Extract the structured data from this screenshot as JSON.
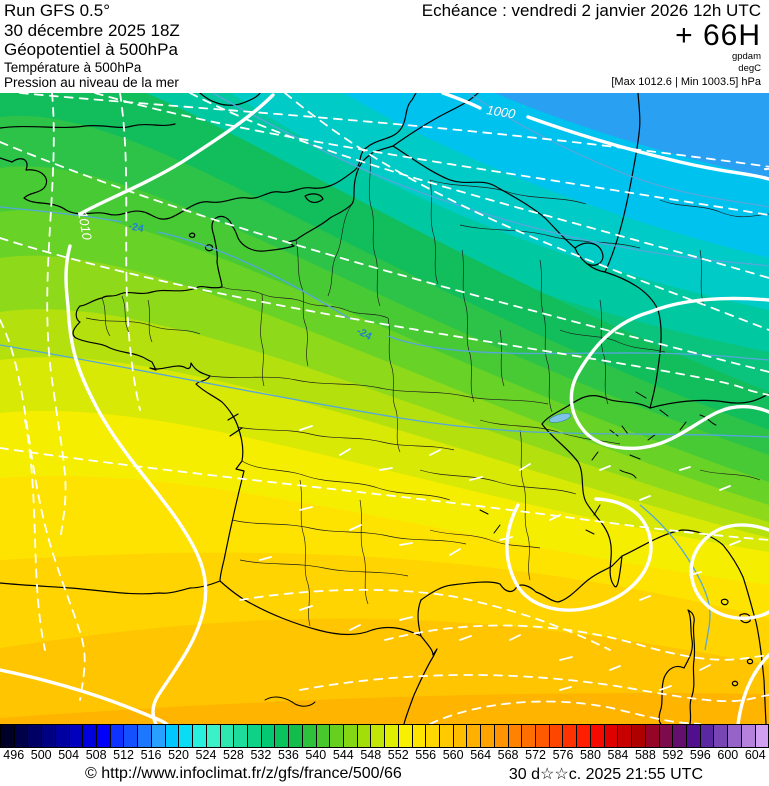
{
  "header": {
    "run": "Run GFS 0.5°",
    "run_date": "30 décembre 2025 18Z",
    "field1": "Géopotentiel à 500hPa",
    "field2": "Température à 500hPa",
    "field3": "Pression au niveau de la mer",
    "echeance": "Echéance : vendredi 2 janvier 2026 12h UTC",
    "step": "+ 66H",
    "unit_fill": "gpdam",
    "unit_temp": "degC",
    "maxmin": "[Max 1012.6 | Min 1003.5] hPa"
  },
  "map": {
    "labels": {
      "isobar_1000": "1000",
      "isobar_1010": "1010",
      "temp_minus24": "-24"
    },
    "band_colors": [
      "#2aa0f2",
      "#00c2ee",
      "#00cbc6",
      "#00c9a2",
      "#0ac47e",
      "#12bd5b",
      "#2cc348",
      "#48ca35",
      "#68d226",
      "#8ed91a",
      "#b4e10e",
      "#d8e905",
      "#f6ee00",
      "#ffe300",
      "#ffd400",
      "#ffc500",
      "#ffb400"
    ],
    "temp_line_color": "#55a7dc",
    "isobar_color": "#ffffff",
    "border_color": "#000000"
  },
  "colorbar": {
    "tick_labels": [
      "496",
      "500",
      "504",
      "508",
      "512",
      "516",
      "520",
      "524",
      "528",
      "532",
      "536",
      "540",
      "544",
      "548",
      "552",
      "556",
      "560",
      "564",
      "568",
      "572",
      "576",
      "580",
      "584",
      "588",
      "592",
      "596",
      "600",
      "604"
    ],
    "cell_colors": [
      "#000028",
      "#000046",
      "#000064",
      "#000082",
      "#0000a0",
      "#0000be",
      "#0000dc",
      "#0000fa",
      "#0f32ff",
      "#1450ff",
      "#1e78ff",
      "#28a0ff",
      "#00c8ff",
      "#0adcf5",
      "#28f0dc",
      "#3cf0c8",
      "#2ee6b0",
      "#1edc9b",
      "#0fd287",
      "#05c873",
      "#0ac35f",
      "#14bd4b",
      "#2ec23c",
      "#48c82d",
      "#66cf1f",
      "#85d714",
      "#a3de0a",
      "#c2e605",
      "#e0ee00",
      "#f8f000",
      "#ffe400",
      "#ffd700",
      "#ffca00",
      "#ffbd00",
      "#ffb000",
      "#ffa300",
      "#ff9300",
      "#ff8200",
      "#ff6e00",
      "#ff5a00",
      "#ff4600",
      "#ff3200",
      "#ff1e00",
      "#f50a00",
      "#e10000",
      "#c80000",
      "#af0000",
      "#960528",
      "#7d0a4b",
      "#640f6e",
      "#500f8c",
      "#5a28a0",
      "#7846b4",
      "#9664c8",
      "#b482dc",
      "#d2a0f0"
    ]
  },
  "footer": {
    "link": "© http://www.infoclimat.fr/z/gfs/france/500/66",
    "generated": "30 d☆☆c. 2025 21:55 UTC"
  }
}
